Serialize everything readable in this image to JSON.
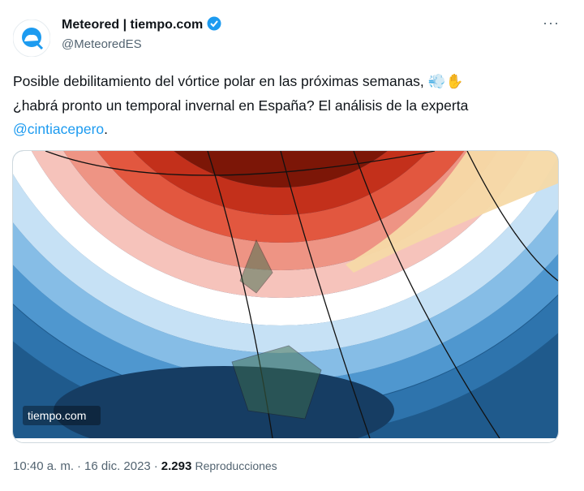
{
  "author": {
    "name": "Meteored | tiempo.com",
    "handle": "@MeteoredES"
  },
  "more": "···",
  "tweet": {
    "lines": [
      {
        "text": "Posible debilitamiento del vórtice polar en las próximas semanas,",
        "emoji": "💨✋"
      },
      {
        "text": "¿habrá pronto un temporal invernal en España? El análisis de la experta"
      },
      {
        "mention": "@cintiacepero",
        "text": "."
      }
    ]
  },
  "image": {
    "watermark": "tiempo.com"
  },
  "footer": {
    "time": "10:40 a. m.",
    "separator": "·",
    "date": "16 dic. 2023",
    "views": "2.293",
    "views_label": "Reproducciones"
  }
}
